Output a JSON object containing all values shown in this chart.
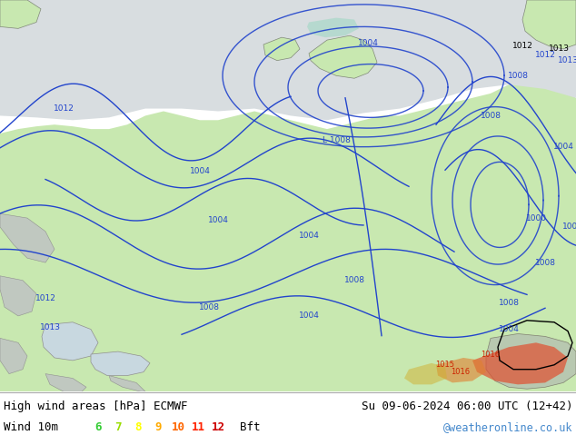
{
  "title_left": "High wind areas [hPa] ECMWF",
  "title_right": "Su 09-06-2024 06:00 UTC (12+42)",
  "subtitle_left": "Wind 10m",
  "subtitle_right": "@weatheronline.co.uk",
  "bft_labels": [
    "6",
    "7",
    "8",
    "9",
    "10",
    "11",
    "12"
  ],
  "bft_colors": [
    "#33cc33",
    "#99dd00",
    "#ffff00",
    "#ffaa00",
    "#ff6600",
    "#ff2200",
    "#cc0000"
  ],
  "bft_suffix": "Bft",
  "bg_color": "#ffffff",
  "sea_color": "#d8dde0",
  "land_color": "#c8e8b0",
  "land_dark": "#b0c890",
  "gray_land": "#c0c8c0",
  "fig_width": 6.34,
  "fig_height": 4.9,
  "dpi": 100,
  "isobar_blue": "#2244cc",
  "isobar_black": "#000000",
  "isobar_red": "#cc2200"
}
